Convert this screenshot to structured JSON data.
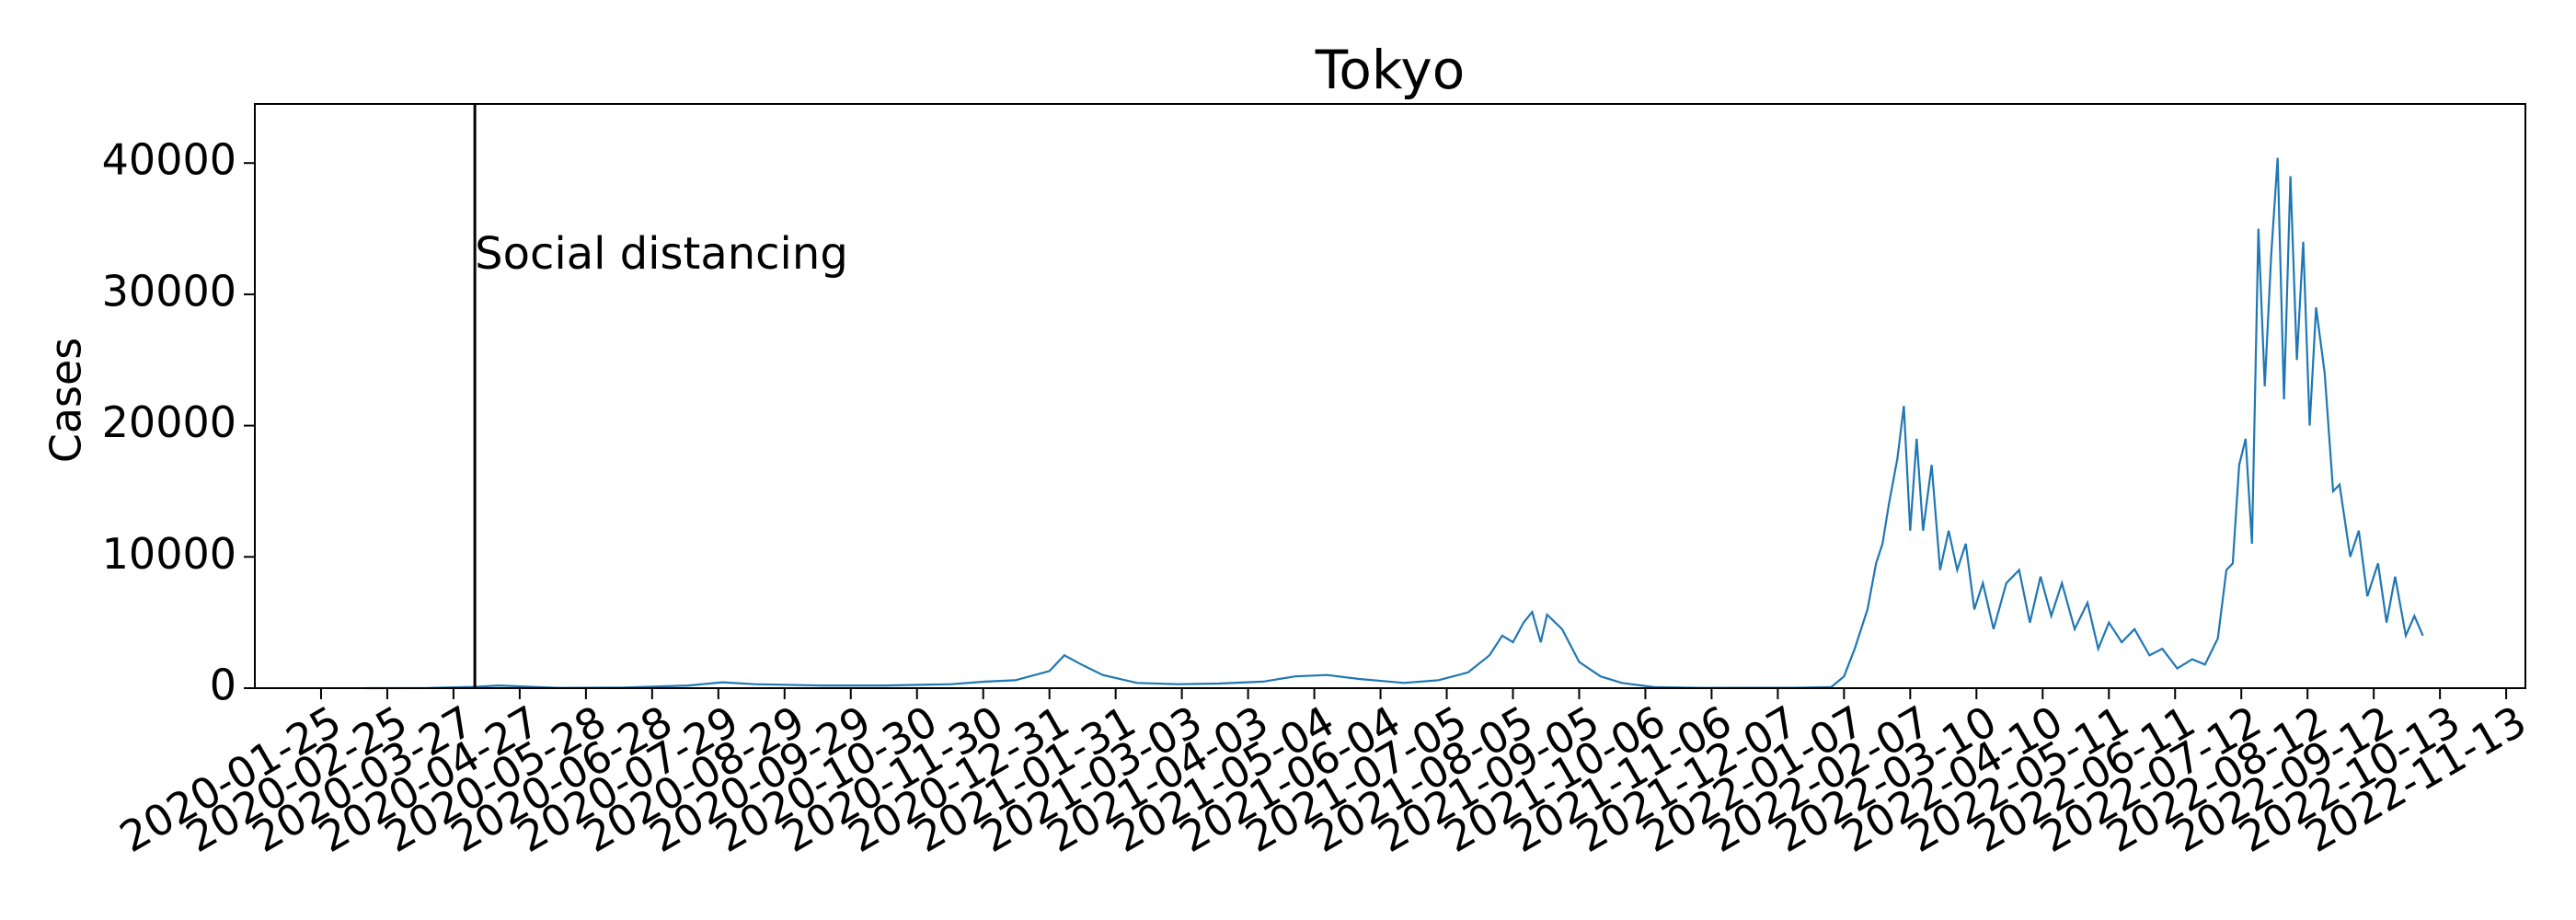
{
  "chart_data": {
    "type": "line",
    "title": "Tokyo",
    "ylabel": "Cases",
    "grid": false,
    "xlim": [
      "2019-12-25",
      "2022-11-22"
    ],
    "ylim": [
      0,
      44500
    ],
    "yticks": [
      0,
      10000,
      20000,
      30000,
      40000
    ],
    "xticks": [
      "2020-01-25",
      "2020-02-25",
      "2020-03-27",
      "2020-04-27",
      "2020-05-28",
      "2020-06-28",
      "2020-07-29",
      "2020-08-29",
      "2020-09-29",
      "2020-10-30",
      "2020-11-30",
      "2020-12-31",
      "2021-01-31",
      "2021-03-03",
      "2021-04-03",
      "2021-05-04",
      "2021-06-04",
      "2021-07-05",
      "2021-08-05",
      "2021-09-05",
      "2021-10-06",
      "2021-11-06",
      "2021-12-07",
      "2022-01-07",
      "2022-02-07",
      "2022-03-10",
      "2022-04-10",
      "2022-05-11",
      "2022-06-11",
      "2022-07-12",
      "2022-08-12",
      "2022-09-12",
      "2022-10-13",
      "2022-11-13"
    ],
    "annotation": {
      "x": "2020-04-06",
      "text": "Social distancing"
    },
    "series": [
      {
        "name": "Cases",
        "color": "#1f77b4",
        "x": [
          "2020-02-15",
          "2020-03-15",
          "2020-04-06",
          "2020-04-17",
          "2020-05-15",
          "2020-06-15",
          "2020-07-15",
          "2020-07-31",
          "2020-08-15",
          "2020-09-15",
          "2020-10-15",
          "2020-11-15",
          "2020-12-01",
          "2020-12-15",
          "2020-12-31",
          "2021-01-07",
          "2021-01-15",
          "2021-01-25",
          "2021-02-10",
          "2021-03-01",
          "2021-03-20",
          "2021-04-10",
          "2021-04-25",
          "2021-05-10",
          "2021-05-25",
          "2021-06-15",
          "2021-07-01",
          "2021-07-15",
          "2021-07-25",
          "2021-07-31",
          "2021-08-05",
          "2021-08-10",
          "2021-08-14",
          "2021-08-18",
          "2021-08-21",
          "2021-08-28",
          "2021-09-05",
          "2021-09-15",
          "2021-09-25",
          "2021-10-10",
          "2021-11-01",
          "2021-12-15",
          "2022-01-01",
          "2022-01-07",
          "2022-01-12",
          "2022-01-18",
          "2022-01-22",
          "2022-01-25",
          "2022-01-28",
          "2022-02-01",
          "2022-02-04",
          "2022-02-07",
          "2022-02-10",
          "2022-02-13",
          "2022-02-17",
          "2022-02-21",
          "2022-02-25",
          "2022-03-01",
          "2022-03-05",
          "2022-03-09",
          "2022-03-13",
          "2022-03-18",
          "2022-03-24",
          "2022-03-30",
          "2022-04-04",
          "2022-04-09",
          "2022-04-14",
          "2022-04-19",
          "2022-04-25",
          "2022-05-01",
          "2022-05-06",
          "2022-05-11",
          "2022-05-17",
          "2022-05-23",
          "2022-05-30",
          "2022-06-05",
          "2022-06-12",
          "2022-06-19",
          "2022-06-25",
          "2022-07-01",
          "2022-07-05",
          "2022-07-08",
          "2022-07-11",
          "2022-07-14",
          "2022-07-17",
          "2022-07-20",
          "2022-07-23",
          "2022-07-26",
          "2022-07-29",
          "2022-08-01",
          "2022-08-04",
          "2022-08-07",
          "2022-08-10",
          "2022-08-13",
          "2022-08-16",
          "2022-08-20",
          "2022-08-24",
          "2022-08-27",
          "2022-09-01",
          "2022-09-05",
          "2022-09-09",
          "2022-09-14",
          "2022-09-18",
          "2022-09-22",
          "2022-09-27",
          "2022-10-01",
          "2022-10-05"
        ],
        "values": [
          0,
          10,
          100,
          200,
          20,
          40,
          200,
          450,
          300,
          200,
          200,
          300,
          500,
          600,
          1300,
          2500,
          1800,
          1000,
          400,
          300,
          350,
          500,
          900,
          1000,
          700,
          400,
          600,
          1200,
          2500,
          4000,
          3500,
          5000,
          5800,
          3500,
          5600,
          4500,
          2000,
          900,
          400,
          80,
          20,
          30,
          80,
          900,
          3000,
          6000,
          9500,
          11000,
          14000,
          17500,
          21500,
          12000,
          19000,
          12000,
          17000,
          9000,
          12000,
          9000,
          11000,
          6000,
          8000,
          4500,
          8000,
          9000,
          5000,
          8500,
          5500,
          8000,
          4500,
          6500,
          3000,
          5000,
          3500,
          4500,
          2500,
          3000,
          1500,
          2200,
          1800,
          3800,
          9000,
          9500,
          17000,
          19000,
          11000,
          35000,
          23000,
          33000,
          40400,
          22000,
          39000,
          25000,
          34000,
          20000,
          29000,
          24000,
          15000,
          15500,
          10000,
          12000,
          7000,
          9500,
          5000,
          8500,
          4000,
          5500,
          4000
        ]
      }
    ]
  }
}
